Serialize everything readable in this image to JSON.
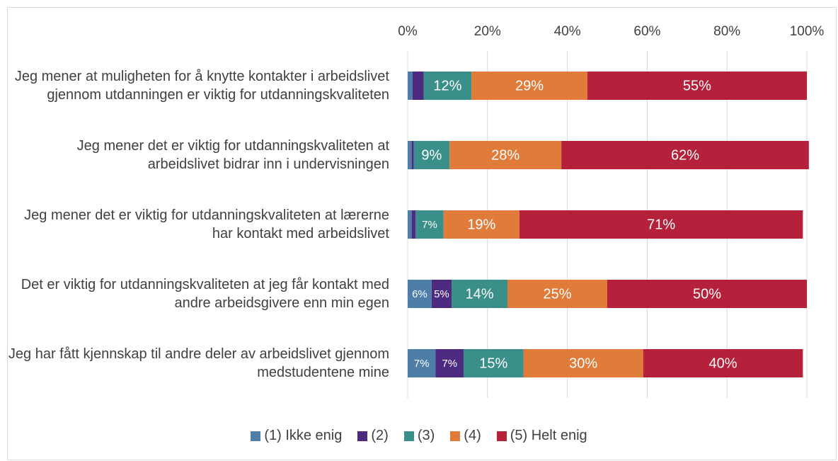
{
  "chart_data": {
    "type": "stacked-bar-horizontal",
    "categories": [
      "Jeg mener at muligheten for å knytte kontakter i arbeidslivet gjennom utdanningen er viktig for utdanningskvaliteten",
      "Jeg mener det er viktig for utdanningskvaliteten at arbeidslivet bidrar inn i undervisningen",
      "Jeg mener det er viktig for utdanningskvaliteten at lærerne har kontakt med arbeidslivet",
      "Det er viktig for utdanningskvaliteten at jeg får kontakt med andre arbeidsgivere enn min egen",
      "Jeg har fått kjennskap til andre deler av arbeidslivet gjennom medstudentene mine"
    ],
    "series": [
      {
        "name": "(1) Ikke enig",
        "color": "#4e7ea8",
        "values": [
          1.2,
          1,
          1,
          6,
          7
        ],
        "value_labels": [
          null,
          null,
          null,
          "6%",
          "7%"
        ]
      },
      {
        "name": "(2)",
        "color": "#4b2a7f",
        "values": [
          2.8,
          0.5,
          1,
          5,
          7
        ],
        "value_labels": [
          null,
          null,
          null,
          "5%",
          "7%"
        ]
      },
      {
        "name": "(3)",
        "color": "#3a8f8a",
        "values": [
          12,
          9,
          7,
          14,
          15
        ],
        "value_labels": [
          "12%",
          "9%",
          "7%",
          "14%",
          "15%"
        ]
      },
      {
        "name": "(4)",
        "color": "#e07b3a",
        "values": [
          29,
          28,
          19,
          25,
          30
        ],
        "value_labels": [
          "29%",
          "28%",
          "19%",
          "25%",
          "30%"
        ]
      },
      {
        "name": "(5) Helt enig",
        "color": "#b5213a",
        "values": [
          55,
          62,
          71,
          50,
          40
        ],
        "value_labels": [
          "55%",
          "62%",
          "71%",
          "50%",
          "40%"
        ]
      }
    ],
    "xlim": [
      0,
      100
    ],
    "xticks": [
      {
        "value": 0,
        "label": "0%"
      },
      {
        "value": 20,
        "label": "20%"
      },
      {
        "value": 40,
        "label": "40%"
      },
      {
        "value": 60,
        "label": "60%"
      },
      {
        "value": 80,
        "label": "80%"
      },
      {
        "value": 100,
        "label": "100%"
      }
    ],
    "grid": true,
    "legend": "bottom"
  }
}
